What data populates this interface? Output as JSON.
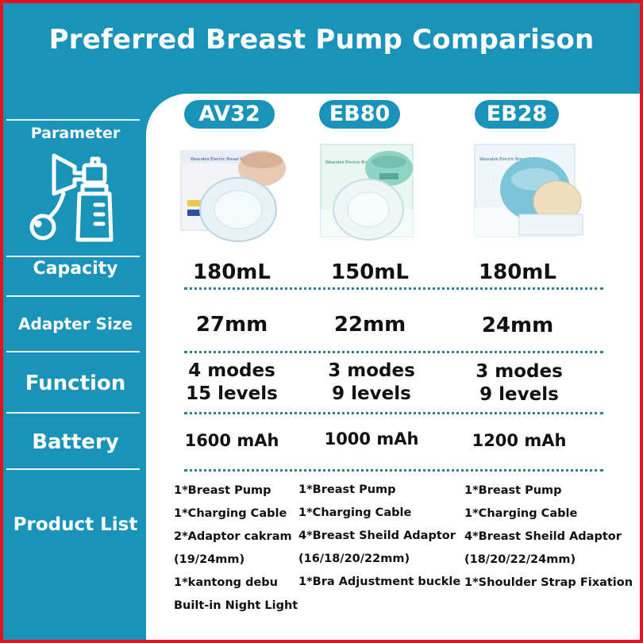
{
  "title": "Preferred Breast Pump Comparison",
  "sidebar": {
    "parameter": "Parameter",
    "capacity": "Capacity",
    "adapter_size": "Adapter Size",
    "function": "Function",
    "battery": "Battery",
    "product_list": "Product List"
  },
  "products": [
    {
      "name": "AV32",
      "box_text": "Wearable Electric Breast Pump",
      "capacity": "180mL",
      "adapter": "27mm",
      "modes": "4 modes",
      "levels": "15 levels",
      "battery": "1600 mAh",
      "items": [
        "1*Breast Pump",
        "1*Charging Cable",
        "2*Adaptor cakram",
        "(19/24mm)",
        "1*kantong debu",
        "Built-in Night Light"
      ]
    },
    {
      "name": "EB80",
      "box_text": "Wearable Electric Breast Pump",
      "capacity": "150mL",
      "adapter": "22mm",
      "modes": "3 modes",
      "levels": "9 levels",
      "battery": "1000 mAh",
      "items": [
        "1*Breast Pump",
        "1*Charging Cable",
        "4*Breast Sheild Adaptor",
        "(16/18/20/22mm)",
        "1*Bra Adjustment buckle"
      ]
    },
    {
      "name": "EB28",
      "box_text": "Wearable Electric Breast Pump",
      "capacity": "180mL",
      "adapter": "24mm",
      "modes": "3 modes",
      "levels": "9 levels",
      "battery": "1200 mAh",
      "items": [
        "1*Breast Pump",
        "1*Charging Cable",
        "4*Breast Sheild Adaptor",
        "(18/20/22/24mm)",
        "1*Shoulder Strap Fixation"
      ]
    }
  ],
  "colors": {
    "teal": "#1a93ba",
    "frame": "#e5141c",
    "mint": "#8fd3c4",
    "blue": "#7cc4d8",
    "rose": "#e8c9b3"
  }
}
